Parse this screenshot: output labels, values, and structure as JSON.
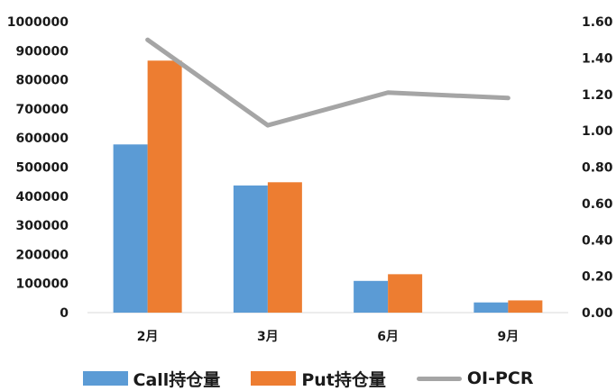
{
  "chart_data": {
    "type": "bar",
    "categories": [
      "2月",
      "3月",
      "6月",
      "9月"
    ],
    "series": [
      {
        "name": "Call持仓量",
        "type": "bar",
        "axis": "left",
        "color": "#5b9bd5",
        "values": [
          578000,
          437000,
          109000,
          35000
        ]
      },
      {
        "name": "Put持仓量",
        "type": "bar",
        "axis": "left",
        "color": "#ed7d31",
        "values": [
          866000,
          448000,
          132000,
          42000
        ]
      },
      {
        "name": "OI-PCR",
        "type": "line",
        "axis": "right",
        "color": "#a5a5a5",
        "values": [
          1.5,
          1.03,
          1.21,
          1.18
        ]
      }
    ],
    "y_left": {
      "min": 0,
      "max": 1000000,
      "ticks": [
        "0",
        "100000",
        "200000",
        "300000",
        "400000",
        "500000",
        "600000",
        "700000",
        "800000",
        "900000",
        "1000000"
      ]
    },
    "y_right": {
      "min": 0,
      "max": 1.6,
      "ticks": [
        "0.00",
        "0.20",
        "0.40",
        "0.60",
        "0.80",
        "1.00",
        "1.20",
        "1.40",
        "1.60"
      ]
    },
    "legend_position": "bottom",
    "grid": false
  }
}
